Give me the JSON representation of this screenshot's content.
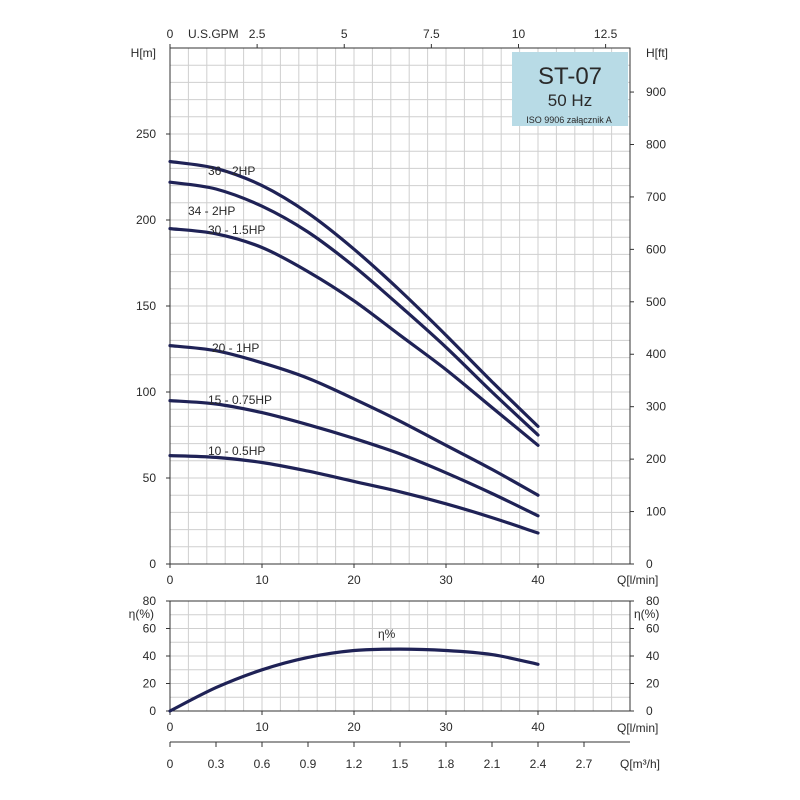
{
  "chart_data": [
    {
      "type": "line",
      "title": "ST-07",
      "subtitle": "50 Hz",
      "note": "ISO 9906 załącznik A",
      "colors": {
        "curve": "#1f2256",
        "title_box": "#b8dbe6",
        "grid": "#cfcfcf"
      },
      "ylabel_left": "H[m]",
      "ylabel_right": "H[ft]",
      "xlabel": "Q[l/min]",
      "xlabel_top": "U.S.GPM",
      "xlim": [
        0,
        50
      ],
      "ylim": [
        0,
        300
      ],
      "ylim_right": [
        0,
        984
      ],
      "xlim_top": [
        0,
        13.2
      ],
      "x_ticks": [
        "0",
        "10",
        "20",
        "30",
        "40"
      ],
      "y_ticks_left": [
        "0",
        "50",
        "100",
        "150",
        "200",
        "250"
      ],
      "y_ticks_right": [
        "0",
        "100",
        "200",
        "300",
        "400",
        "500",
        "600",
        "700",
        "800",
        "900"
      ],
      "x_ticks_top": [
        "0",
        "2.5",
        "5",
        "7.5",
        "10",
        "12.5"
      ],
      "grid": true,
      "series": [
        {
          "name": "36 - 2HP",
          "x": [
            0,
            5,
            10,
            15,
            20,
            25,
            30,
            35,
            40
          ],
          "y": [
            234,
            230,
            220,
            204,
            183,
            159,
            133,
            106,
            80
          ]
        },
        {
          "name": "34 - 2HP",
          "x": [
            0,
            5,
            10,
            15,
            20,
            25,
            30,
            35,
            40
          ],
          "y": [
            222,
            218,
            208,
            193,
            173,
            150,
            126,
            100,
            75
          ]
        },
        {
          "name": "30 - 1.5HP",
          "x": [
            0,
            5,
            10,
            15,
            20,
            25,
            30,
            35,
            40
          ],
          "y": [
            195,
            192,
            184,
            170,
            153,
            133,
            113,
            91,
            69
          ]
        },
        {
          "name": "20 - 1HP",
          "x": [
            0,
            5,
            10,
            15,
            20,
            25,
            30,
            35,
            40
          ],
          "y": [
            127,
            124,
            117,
            108,
            96,
            83,
            69,
            55,
            40
          ]
        },
        {
          "name": "15 - 0.75HP",
          "x": [
            0,
            5,
            10,
            15,
            20,
            25,
            30,
            35,
            40
          ],
          "y": [
            95,
            93,
            88,
            81,
            73,
            64,
            53,
            41,
            28
          ]
        },
        {
          "name": "10 - 0.5HP",
          "x": [
            0,
            5,
            10,
            15,
            20,
            25,
            30,
            35,
            40
          ],
          "y": [
            63,
            62,
            59,
            54,
            48,
            42,
            35,
            27,
            18
          ]
        }
      ]
    },
    {
      "type": "line",
      "ylabel_left": "η(%)",
      "ylabel_right": "η(%)",
      "xlabel": "Q[l/min]",
      "xlabel_bottom": "Q[m³/h]",
      "xlim": [
        0,
        50
      ],
      "ylim": [
        0,
        80
      ],
      "x_ticks": [
        "0",
        "10",
        "20",
        "30",
        "40"
      ],
      "y_ticks": [
        "0",
        "20",
        "40",
        "60",
        "80"
      ],
      "x_ticks_bottom": [
        "0",
        "0.3",
        "0.6",
        "0.9",
        "1.2",
        "1.5",
        "1.8",
        "2.1",
        "2.4",
        "2.7"
      ],
      "grid": true,
      "series": [
        {
          "name": "η%",
          "x": [
            0,
            5,
            10,
            15,
            20,
            25,
            30,
            35,
            40
          ],
          "y": [
            0,
            17,
            30,
            39,
            44,
            45,
            44,
            41,
            34
          ]
        }
      ]
    }
  ]
}
